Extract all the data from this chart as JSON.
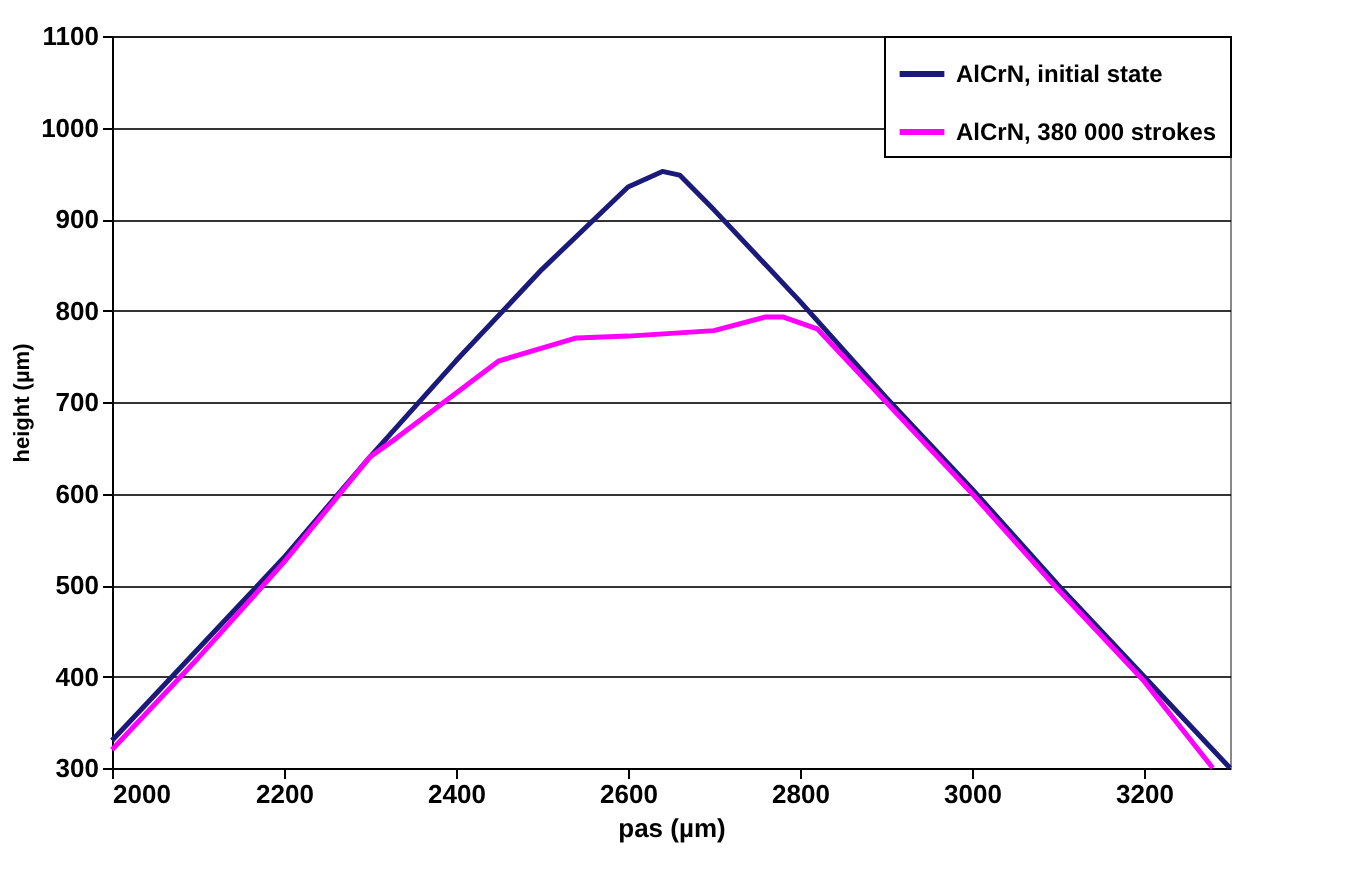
{
  "chart_data": {
    "type": "line",
    "xlabel": "pas (µm)",
    "ylabel": "height (µm)",
    "xlim": [
      2000,
      3300
    ],
    "xticks": [
      2000,
      2200,
      2400,
      2600,
      2800,
      3000,
      3200
    ],
    "ylim": [
      300,
      1100
    ],
    "yticks": [
      300,
      400,
      500,
      600,
      700,
      800,
      900,
      1000,
      1100
    ],
    "grid": "y",
    "legend": "top right",
    "line_style": "solid",
    "marker": "none",
    "series": [
      {
        "name": "AlCrN, initial state",
        "color": "#1a1a7a",
        "x": [
          2000,
          2100,
          2150,
          2200,
          2300,
          2400,
          2500,
          2600,
          2640,
          2660,
          2700,
          2800,
          2900,
          3000,
          3100,
          3200,
          3300
        ],
        "values": [
          330,
          430,
          480,
          530,
          640,
          745,
          845,
          935,
          952,
          948,
          910,
          810,
          705,
          605,
          500,
          400,
          300
        ]
      },
      {
        "name": "AlCrN, 380 000 strokes",
        "color": "#ff00ff",
        "x": [
          2000,
          2100,
          2200,
          2300,
          2330,
          2450,
          2540,
          2600,
          2700,
          2760,
          2780,
          2820,
          2900,
          3000,
          3100,
          3200,
          3280
        ],
        "values": [
          320,
          420,
          525,
          640,
          660,
          745,
          770,
          772,
          778,
          793,
          793,
          780,
          700,
          600,
          495,
          395,
          300
        ]
      }
    ]
  }
}
